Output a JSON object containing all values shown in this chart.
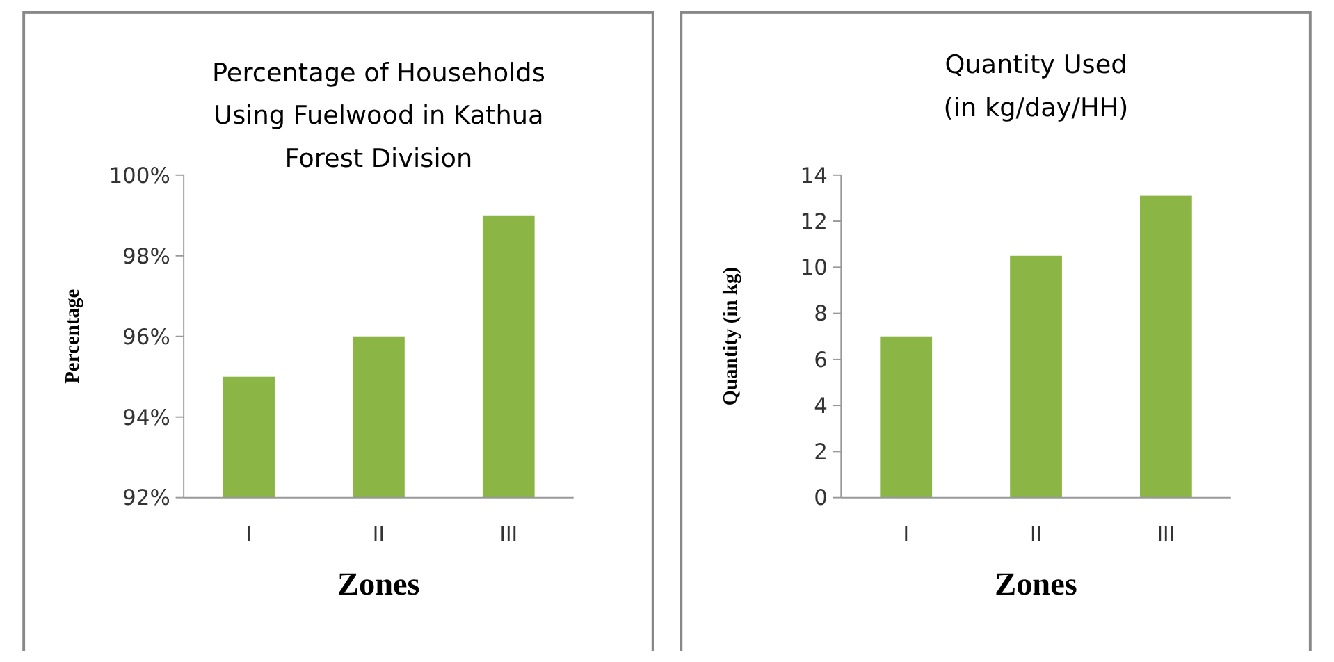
{
  "chart_data": [
    {
      "type": "bar",
      "title": "Percentage of Households Using Fuelwood in Kathua Forest Division",
      "xlabel": "Zones",
      "ylabel": "Percentage",
      "categories": [
        "I",
        "II",
        "III"
      ],
      "values": [
        95,
        96,
        99
      ],
      "color": "#8bb545",
      "ylim": [
        92,
        100
      ],
      "yticks": [
        {
          "value": 92,
          "label": "92%"
        },
        {
          "value": 94,
          "label": "94%"
        },
        {
          "value": 96,
          "label": "96%"
        },
        {
          "value": 98,
          "label": "98%"
        },
        {
          "value": 100,
          "label": "100%"
        }
      ],
      "grid": false
    },
    {
      "type": "bar",
      "title": "Quantity Used\n(in kg/day/HH)",
      "xlabel": "Zones",
      "ylabel": "Quantity (in kg)",
      "categories": [
        "I",
        "II",
        "III"
      ],
      "values": [
        7.0,
        10.5,
        13.1
      ],
      "color": "#8bb545",
      "ylim": [
        0,
        14
      ],
      "yticks": [
        0,
        2,
        4,
        6,
        8,
        10,
        12,
        14
      ],
      "grid": false
    }
  ]
}
